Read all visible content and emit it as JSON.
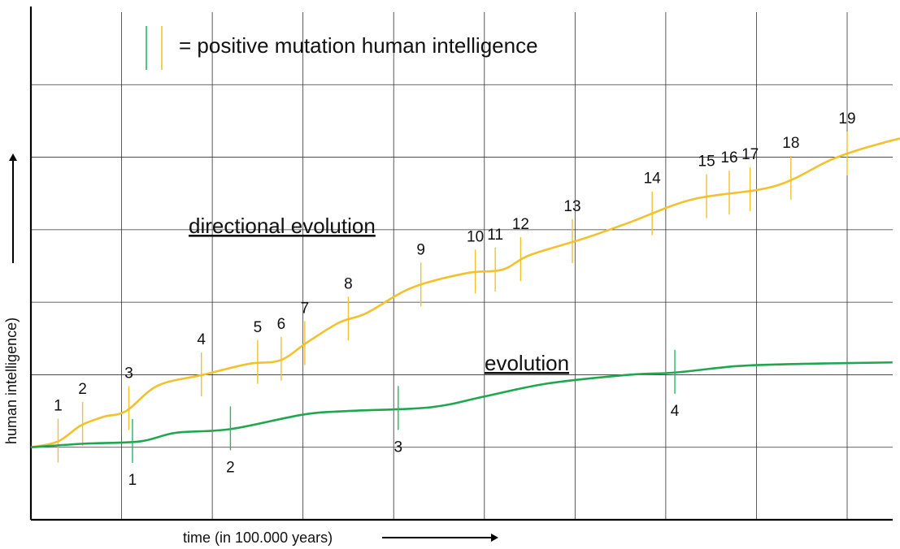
{
  "chart_data": {
    "type": "line",
    "title": "",
    "legend": {
      "text": "= positive mutation human intelligence",
      "marker_colors": [
        "#2db36b",
        "#f2c12e"
      ]
    },
    "xlabel": "time (in 100.000 years)",
    "ylabel": "human intelligence)",
    "grid": true,
    "x_divisions": 10,
    "y_divisions": 7,
    "xlim": [
      0,
      10
    ],
    "ylim": [
      0,
      7
    ],
    "series": [
      {
        "name": "directional evolution",
        "color": "#f2c12e",
        "points": [
          [
            0,
            1.0
          ],
          [
            0.3,
            1.08
          ],
          [
            0.55,
            1.3
          ],
          [
            0.8,
            1.42
          ],
          [
            1.05,
            1.5
          ],
          [
            1.4,
            1.85
          ],
          [
            1.9,
            2.0
          ],
          [
            2.4,
            2.15
          ],
          [
            2.75,
            2.2
          ],
          [
            3.05,
            2.45
          ],
          [
            3.4,
            2.72
          ],
          [
            3.7,
            2.85
          ],
          [
            4.2,
            3.2
          ],
          [
            4.8,
            3.4
          ],
          [
            5.2,
            3.45
          ],
          [
            5.5,
            3.65
          ],
          [
            6.1,
            3.88
          ],
          [
            6.6,
            4.1
          ],
          [
            7.3,
            4.42
          ],
          [
            8.2,
            4.6
          ],
          [
            8.85,
            4.98
          ],
          [
            9.4,
            5.2
          ],
          [
            10,
            5.38
          ]
        ],
        "mutations": [
          {
            "label": "1",
            "x": 0.3
          },
          {
            "label": "2",
            "x": 0.57
          },
          {
            "label": "3",
            "x": 1.08
          },
          {
            "label": "4",
            "x": 1.88
          },
          {
            "label": "5",
            "x": 2.5
          },
          {
            "label": "6",
            "x": 2.76
          },
          {
            "label": "7",
            "x": 3.02
          },
          {
            "label": "8",
            "x": 3.5
          },
          {
            "label": "9",
            "x": 4.3
          },
          {
            "label": "10",
            "x": 4.9
          },
          {
            "label": "11",
            "x": 5.12
          },
          {
            "label": "12",
            "x": 5.4
          },
          {
            "label": "13",
            "x": 5.97
          },
          {
            "label": "14",
            "x": 6.85
          },
          {
            "label": "15",
            "x": 7.45
          },
          {
            "label": "16",
            "x": 7.7
          },
          {
            "label": "17",
            "x": 7.93
          },
          {
            "label": "18",
            "x": 8.38
          },
          {
            "label": "19",
            "x": 9.0
          }
        ]
      },
      {
        "name": "evolution",
        "color": "#1fa64f",
        "points": [
          [
            0,
            1.0
          ],
          [
            0.6,
            1.05
          ],
          [
            1.2,
            1.08
          ],
          [
            1.6,
            1.2
          ],
          [
            2.2,
            1.25
          ],
          [
            3.0,
            1.45
          ],
          [
            3.5,
            1.5
          ],
          [
            4.4,
            1.55
          ],
          [
            5.0,
            1.7
          ],
          [
            5.7,
            1.88
          ],
          [
            6.6,
            2.0
          ],
          [
            7.1,
            2.03
          ],
          [
            7.8,
            2.12
          ],
          [
            8.5,
            2.15
          ],
          [
            9.5,
            2.17
          ]
        ],
        "mutations": [
          {
            "label": "1",
            "x": 1.12
          },
          {
            "label": "2",
            "x": 2.2
          },
          {
            "label": "3",
            "x": 4.05
          },
          {
            "label": "4",
            "x": 7.1
          }
        ]
      }
    ]
  }
}
